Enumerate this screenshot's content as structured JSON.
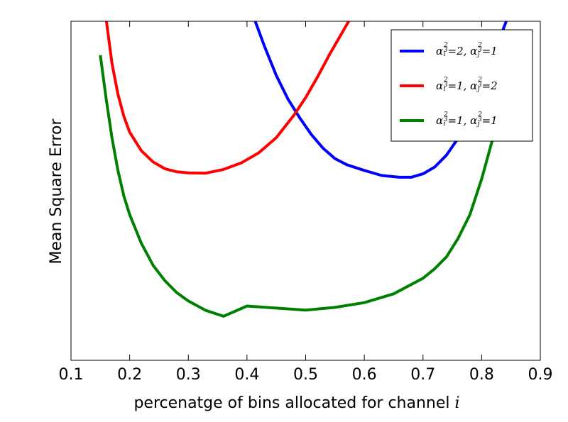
{
  "chart_data": {
    "type": "line",
    "title": "",
    "xlabel": "percenatge of bins allocated for channel",
    "xlabel_var": "i",
    "ylabel": "Mean Square Error",
    "xlim": [
      0.1,
      0.9
    ],
    "ylim": [
      0,
      1
    ],
    "xticks": [
      "0.1",
      "0.2",
      "0.3",
      "0.4",
      "0.5",
      "0.6",
      "0.7",
      "0.8",
      "0.9"
    ],
    "yticks": [],
    "grid": false,
    "legend_position": "top-right",
    "series": [
      {
        "name": "α_i^(2/3)=2, α_j^(2/3)=1",
        "legend": {
          "a1": "2",
          "a2": "1"
        },
        "color": "#0000ff",
        "x": [
          0.413,
          0.43,
          0.45,
          0.47,
          0.49,
          0.51,
          0.53,
          0.55,
          0.57,
          0.6,
          0.63,
          0.66,
          0.68,
          0.7,
          0.72,
          0.74,
          0.76,
          0.78,
          0.8,
          0.82,
          0.843
        ],
        "y": [
          1.005,
          0.925,
          0.84,
          0.77,
          0.715,
          0.665,
          0.625,
          0.595,
          0.577,
          0.56,
          0.545,
          0.54,
          0.54,
          0.55,
          0.57,
          0.605,
          0.655,
          0.72,
          0.81,
          0.9,
          1.005
        ]
      },
      {
        "name": "α_i^(2/3)=1, α_j^(2/3)=2",
        "legend": {
          "a1": "1",
          "a2": "2"
        },
        "color": "#ff0000",
        "x": [
          0.16,
          0.17,
          0.18,
          0.19,
          0.2,
          0.22,
          0.24,
          0.26,
          0.28,
          0.3,
          0.33,
          0.36,
          0.39,
          0.42,
          0.45,
          0.48,
          0.5,
          0.52,
          0.54,
          0.56,
          0.575
        ],
        "y": [
          1.005,
          0.875,
          0.785,
          0.72,
          0.673,
          0.618,
          0.585,
          0.565,
          0.556,
          0.553,
          0.552,
          0.563,
          0.582,
          0.612,
          0.657,
          0.723,
          0.775,
          0.835,
          0.9,
          0.96,
          1.005
        ]
      },
      {
        "name": "α_i^(2/3)=1, α_j^(2/3)=1",
        "legend": {
          "a1": "1",
          "a2": "1"
        },
        "color": "#008000",
        "x": [
          0.15,
          0.16,
          0.17,
          0.18,
          0.19,
          0.2,
          0.22,
          0.24,
          0.26,
          0.28,
          0.3,
          0.33,
          0.36,
          0.4,
          0.45,
          0.5,
          0.55,
          0.6,
          0.65,
          0.7,
          0.72,
          0.74,
          0.76,
          0.78,
          0.8,
          0.82,
          0.84,
          0.848
        ],
        "y": [
          0.9,
          0.77,
          0.655,
          0.56,
          0.485,
          0.43,
          0.345,
          0.28,
          0.235,
          0.2,
          0.175,
          0.147,
          0.13,
          0.16,
          0.154,
          0.148,
          0.156,
          0.17,
          0.196,
          0.242,
          0.27,
          0.305,
          0.36,
          0.43,
          0.535,
          0.66,
          0.8,
          0.855
        ]
      }
    ]
  }
}
